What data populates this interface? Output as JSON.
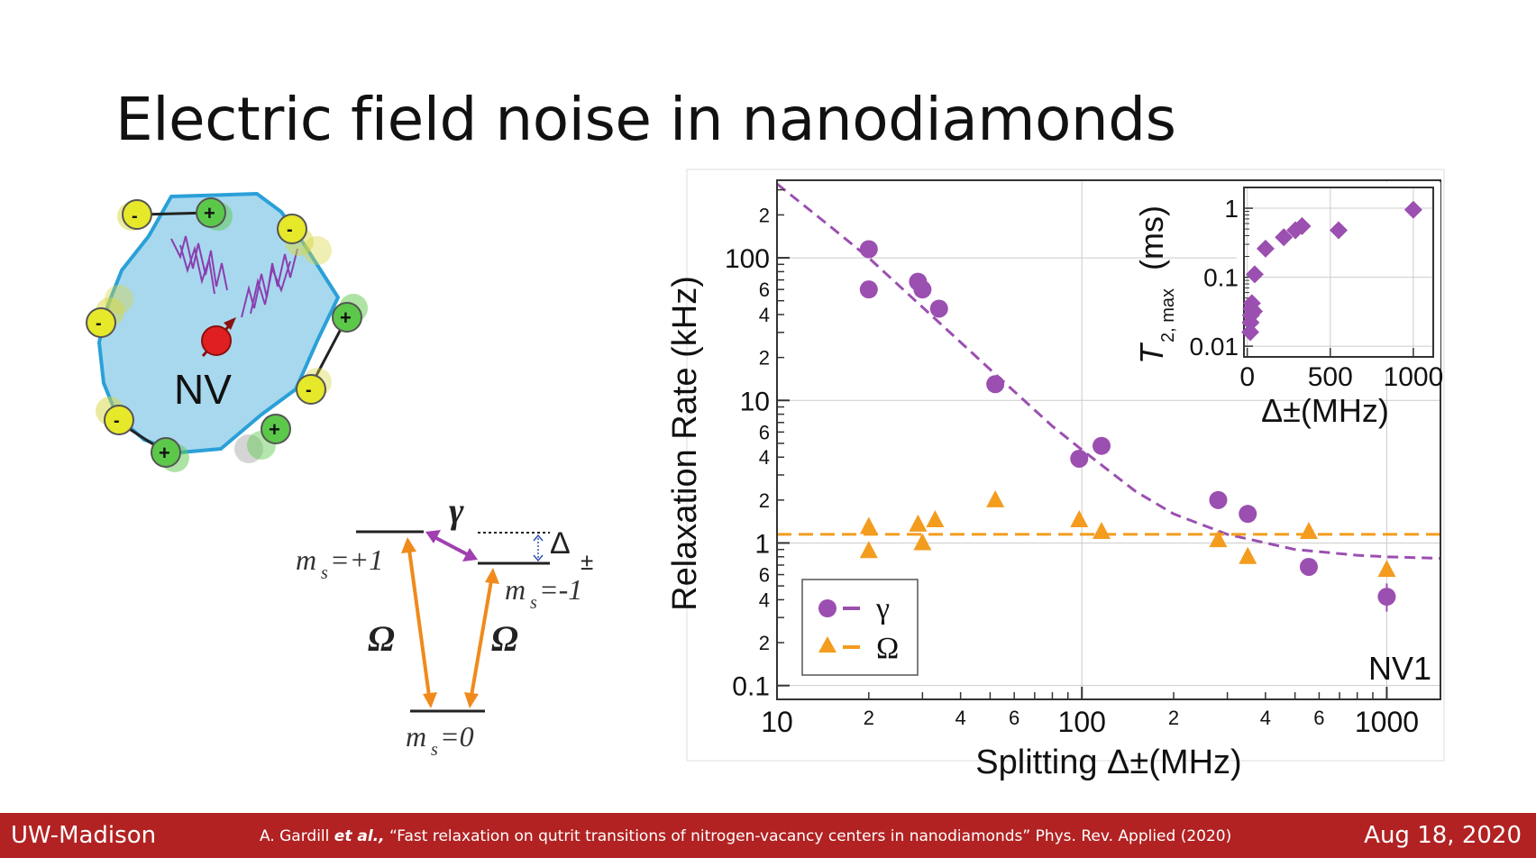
{
  "slide": {
    "title": "Electric field noise in nanodiamonds",
    "footer_left": "UW-Madison",
    "footer_authors": "A. Gardill ",
    "footer_etal": "et al.,",
    "footer_paper": " “Fast relaxation on qutrit transitions of nitrogen-vacancy centers in nanodiamonds” Phys. Rev. Applied (2020)",
    "footer_date": "Aug 18, 2020"
  },
  "nanodiamond": {
    "label": "NV",
    "minus_sign": "-",
    "plus_sign": "+",
    "colors": {
      "body": "#a8d8ee",
      "outline": "#2aa0d8",
      "negative": "#e6e82a",
      "positive": "#5cc84a",
      "spin": "#e02020",
      "noise": "#8a3fb0"
    }
  },
  "levels": {
    "gamma": "γ",
    "delta": "Δ",
    "delta_sub": "±",
    "omega": "Ω",
    "ms_plus1": "=+1",
    "ms_minus1": "=-1",
    "ms_zero": "=0",
    "ms_m": "m",
    "ms_s": "s",
    "colors": {
      "omega_arrow": "#f08a1c",
      "gamma_arrow": "#a040b0",
      "delta_arrow": "#3050b0"
    }
  },
  "chart_data": [
    {
      "type": "scatter",
      "xlabel": "Splitting Δ±(MHz)",
      "ylabel": "Relaxation Rate (kHz)",
      "x_scale": "log",
      "y_scale": "log",
      "xlim": [
        10,
        1500
      ],
      "ylim": [
        0.08,
        350
      ],
      "x_major_ticks": [
        "10",
        "100",
        "1000"
      ],
      "x_minor_ticks": [
        "2",
        "4",
        "6",
        "2",
        "4",
        "6"
      ],
      "y_major_ticks": [
        "0.1",
        "1",
        "10",
        "100"
      ],
      "y_minor_ticks": [
        "2",
        "4",
        "6",
        "2",
        "4",
        "6",
        "2",
        "4",
        "6",
        "2"
      ],
      "annotation": "NV1",
      "legend_position": "bottom-left",
      "grid": true,
      "series": [
        {
          "name": "γ",
          "marker": "circle",
          "color": "#9b4fb0",
          "x": [
            20,
            20,
            29,
            30,
            34,
            52,
            98,
            116,
            280,
            350,
            555,
            1000
          ],
          "y": [
            115,
            60,
            68,
            60,
            44,
            13,
            3.9,
            4.8,
            2.0,
            1.6,
            0.68,
            0.42
          ]
        },
        {
          "name": "Ω",
          "marker": "triangle",
          "color": "#f39c1e",
          "x": [
            20,
            20,
            29,
            30,
            33,
            52,
            98,
            116,
            280,
            350,
            555,
            1000
          ],
          "y": [
            1.3,
            0.88,
            1.35,
            1.0,
            1.45,
            2.0,
            1.45,
            1.2,
            1.05,
            0.8,
            1.2,
            0.65
          ]
        }
      ],
      "fits": [
        {
          "name": "γ",
          "style": "dashed",
          "color": "#9b4fb0",
          "x": [
            10,
            15,
            20,
            30,
            50,
            80,
            100,
            150,
            200,
            300,
            500,
            800,
            1000,
            1500
          ],
          "y": [
            330,
            165,
            100,
            45,
            16.5,
            6.6,
            4.5,
            2.3,
            1.6,
            1.15,
            0.9,
            0.82,
            0.8,
            0.78
          ]
        },
        {
          "name": "Ω",
          "style": "dashed",
          "color": "#f39c1e",
          "x": [
            10,
            1500
          ],
          "y": [
            1.15,
            1.15
          ]
        }
      ]
    },
    {
      "type": "scatter",
      "xlabel": "Δ±(MHz)",
      "ylabel_main": "T",
      "ylabel_sub": "2, max",
      "ylabel_unit": "(ms)",
      "x_scale": "linear",
      "y_scale": "log",
      "xlim": [
        -20,
        1120
      ],
      "ylim": [
        0.007,
        2
      ],
      "x_ticks": [
        "0",
        "500",
        "1000"
      ],
      "y_ticks": [
        "0.01",
        "0.1",
        "1"
      ],
      "series": [
        {
          "marker": "diamond",
          "color": "#9b4fb0",
          "x": [
            18,
            20,
            22,
            25,
            28,
            40,
            45,
            110,
            220,
            290,
            330,
            550,
            1000
          ],
          "y": [
            0.016,
            0.022,
            0.028,
            0.035,
            0.042,
            0.032,
            0.11,
            0.26,
            0.38,
            0.48,
            0.55,
            0.48,
            0.95
          ]
        }
      ]
    }
  ]
}
